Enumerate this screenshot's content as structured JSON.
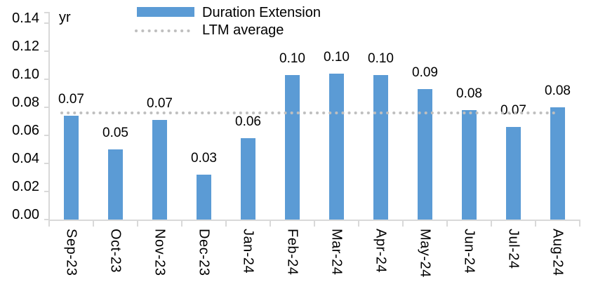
{
  "chart_data": {
    "type": "bar",
    "title": "",
    "unit_label": "yr",
    "categories": [
      "Sep-23",
      "Oct-23",
      "Nov-23",
      "Dec-23",
      "Jan-24",
      "Feb-24",
      "Mar-24",
      "Apr-24",
      "May-24",
      "Jun-24",
      "Jul-24",
      "Aug-24"
    ],
    "series": [
      {
        "name": "Duration Extension",
        "type": "bar",
        "color": "#5B9BD5",
        "values": [
          0.074,
          0.05,
          0.071,
          0.032,
          0.058,
          0.103,
          0.104,
          0.103,
          0.093,
          0.078,
          0.066,
          0.08
        ],
        "data_labels": [
          "0.07",
          "0.05",
          "0.07",
          "0.03",
          "0.06",
          "0.10",
          "0.10",
          "0.10",
          "0.09",
          "0.08",
          "0.07",
          "0.08"
        ]
      },
      {
        "name": "LTM average",
        "type": "line",
        "line_style": "dotted",
        "color": "#BFBFBF",
        "value": 0.076
      }
    ],
    "ylim": [
      0,
      0.14
    ],
    "ytick_step": 0.02,
    "yticks": [
      "0.00",
      "0.02",
      "0.04",
      "0.06",
      "0.08",
      "0.10",
      "0.12",
      "0.14"
    ],
    "grid": "off",
    "legend_position": "top-center",
    "axis_color": "#D9D9D9",
    "text_color": "#000000",
    "background_color": "#FFFFFF"
  }
}
